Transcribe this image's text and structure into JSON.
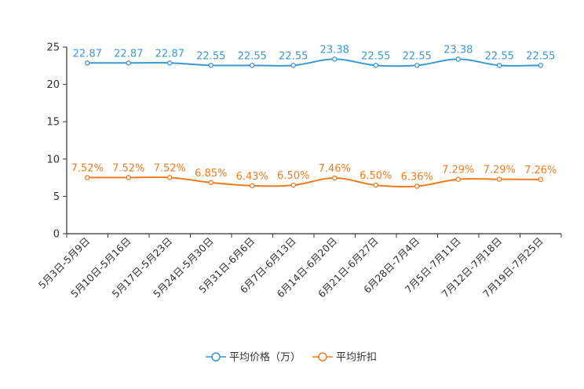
{
  "chart_data": {
    "type": "line",
    "title": "",
    "xlabel": "",
    "ylabel": "",
    "ylim": [
      0,
      25
    ],
    "yticks": [
      "0",
      "5",
      "10",
      "15",
      "20",
      "25"
    ],
    "grid": false,
    "legend_position": "bottom",
    "categories": [
      "5月3日-5月9日",
      "5月10日-5月16日",
      "5月17日-5月23日",
      "5月24日-5月30日",
      "5月31日-6月6日",
      "6月7日-6月13日",
      "6月14日-6月20日",
      "6月21日-6月27日",
      "6月28日-7月4日",
      "7月5日-7月11日",
      "7月12日-7月18日",
      "7月19日-7月25日"
    ],
    "series": [
      {
        "name": "平均价格（万）",
        "color": "#3a97d0",
        "values": [
          22.87,
          22.87,
          22.87,
          22.55,
          22.55,
          22.55,
          23.38,
          22.55,
          22.55,
          23.38,
          22.55,
          22.55
        ],
        "labels": [
          "22.87",
          "22.87",
          "22.87",
          "22.55",
          "22.55",
          "22.55",
          "23.38",
          "22.55",
          "22.55",
          "23.38",
          "22.55",
          "22.55"
        ]
      },
      {
        "name": "平均折扣",
        "color": "#f07b1e",
        "values": [
          7.52,
          7.52,
          7.52,
          6.85,
          6.43,
          6.5,
          7.46,
          6.5,
          6.36,
          7.29,
          7.29,
          7.26
        ],
        "labels": [
          "7.52%",
          "7.52%",
          "7.52%",
          "6.85%",
          "6.43%",
          "6.50%",
          "7.46%",
          "6.50%",
          "6.36%",
          "7.29%",
          "7.29%",
          "7.26%"
        ]
      }
    ]
  }
}
